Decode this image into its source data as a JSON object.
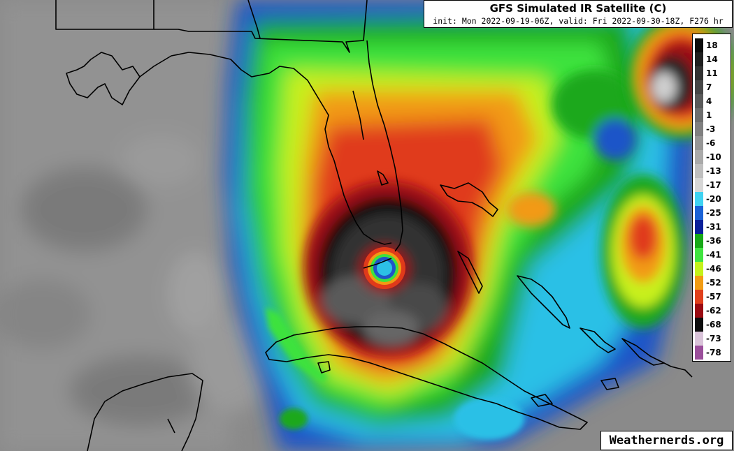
{
  "header": {
    "title": "GFS Simulated IR Satellite (C)",
    "subtitle": "init: Mon 2022-09-19-06Z, valid: Fri 2022-09-30-18Z, F276 hr"
  },
  "colorbar": {
    "labels": [
      "18",
      "14",
      "11",
      "7",
      "4",
      "1",
      "-3",
      "-6",
      "-10",
      "-13",
      "-17",
      "-20",
      "-25",
      "-31",
      "-36",
      "-41",
      "-46",
      "-52",
      "-57",
      "-62",
      "-68",
      "-73",
      "-78"
    ],
    "colors": [
      "#0d0d0d",
      "#202020",
      "#333333",
      "#474747",
      "#5a5a5a",
      "#6e6e6e",
      "#808080",
      "#969696",
      "#aaaaaa",
      "#bfbfbf",
      "#d6d6d6",
      "#3fd2f2",
      "#1a62d6",
      "#0a1f9a",
      "#17a817",
      "#3fe43f",
      "#c4f21a",
      "#f29c14",
      "#e0401c",
      "#9a0a12",
      "#0d0d0d",
      "#d9c3d9",
      "#9b4f9b"
    ]
  },
  "map": {
    "land_color": "#7c7c7c",
    "ocean_color": "#8c8c8c",
    "border_color": "#000000",
    "feature": "hurricane-eye"
  },
  "credit": {
    "text": "Weathernerds.org"
  }
}
